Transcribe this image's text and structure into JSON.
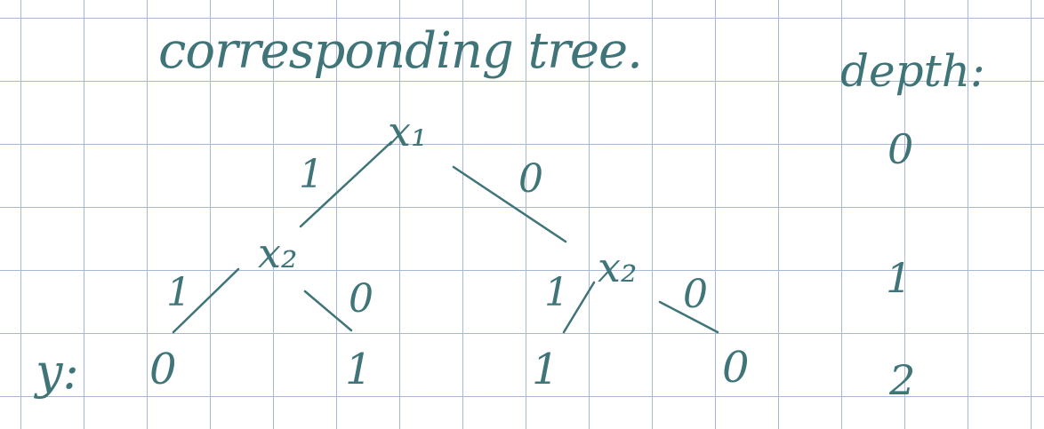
{
  "title": "corresponding tree.",
  "depth_header": "depth:",
  "root": {
    "label": "x₁",
    "edge_left": "1",
    "edge_right": "0"
  },
  "left_node": {
    "label": "x₂",
    "edge_left": "1",
    "edge_right": "0"
  },
  "right_node": {
    "label": "x₂",
    "edge_left": "1",
    "edge_right": "0"
  },
  "y_label": "y:",
  "leaves": [
    "0",
    "1",
    "1",
    "0"
  ],
  "depths": [
    "0",
    "1",
    "2"
  ],
  "colors": {
    "ink": "#3f7478",
    "grid": "#a9b8d6",
    "paper": "#ffffff"
  }
}
